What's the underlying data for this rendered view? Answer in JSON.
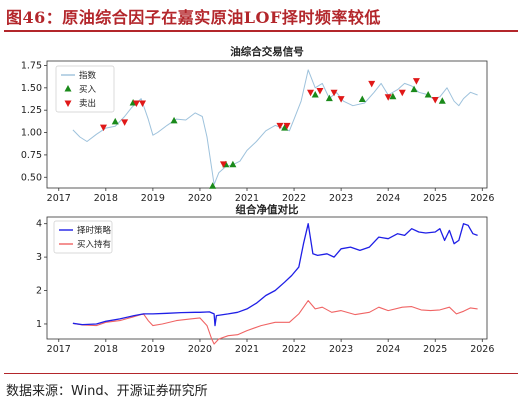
{
  "header": {
    "title": "图46：原油综合因子在嘉实原油LOF择时频率较低"
  },
  "footer": {
    "source": "数据来源：Wind、开源证券研究所"
  },
  "colors": {
    "accent": "#b3262b",
    "signal_line": "#9ec2dc",
    "strategy": "#1f1fe6",
    "buyhold": "#f06464",
    "buy": "#1a8a1a",
    "sell": "#e01818"
  },
  "chart_data": [
    {
      "type": "line",
      "title": "油综合交易信号",
      "x_ticks": [
        2017,
        2018,
        2019,
        2020,
        2021,
        2022,
        2023,
        2024,
        2025,
        2026
      ],
      "y_ticks": [
        0.5,
        0.75,
        1.0,
        1.25,
        1.5,
        1.75
      ],
      "xlim": [
        2016.75,
        2026.1
      ],
      "ylim": [
        0.38,
        1.8
      ],
      "series": [
        {
          "name": "指数",
          "points": [
            [
              2017.3,
              1.03
            ],
            [
              2017.45,
              0.95
            ],
            [
              2017.6,
              0.9
            ],
            [
              2017.8,
              0.98
            ],
            [
              2018.0,
              1.05
            ],
            [
              2018.2,
              1.07
            ],
            [
              2018.4,
              1.18
            ],
            [
              2018.55,
              1.28
            ],
            [
              2018.75,
              1.38
            ],
            [
              2018.9,
              1.15
            ],
            [
              2019.0,
              0.97
            ],
            [
              2019.1,
              1.0
            ],
            [
              2019.3,
              1.08
            ],
            [
              2019.5,
              1.15
            ],
            [
              2019.7,
              1.14
            ],
            [
              2019.9,
              1.22
            ],
            [
              2020.05,
              1.18
            ],
            [
              2020.15,
              0.95
            ],
            [
              2020.25,
              0.6
            ],
            [
              2020.3,
              0.42
            ],
            [
              2020.4,
              0.55
            ],
            [
              2020.55,
              0.62
            ],
            [
              2020.7,
              0.64
            ],
            [
              2020.85,
              0.68
            ],
            [
              2021.0,
              0.8
            ],
            [
              2021.2,
              0.9
            ],
            [
              2021.4,
              1.02
            ],
            [
              2021.6,
              1.08
            ],
            [
              2021.75,
              1.05
            ],
            [
              2021.9,
              1.02
            ],
            [
              2022.0,
              1.15
            ],
            [
              2022.15,
              1.35
            ],
            [
              2022.3,
              1.7
            ],
            [
              2022.45,
              1.5
            ],
            [
              2022.6,
              1.55
            ],
            [
              2022.75,
              1.38
            ],
            [
              2022.9,
              1.45
            ],
            [
              2023.05,
              1.35
            ],
            [
              2023.25,
              1.3
            ],
            [
              2023.5,
              1.33
            ],
            [
              2023.7,
              1.45
            ],
            [
              2023.85,
              1.55
            ],
            [
              2024.0,
              1.42
            ],
            [
              2024.2,
              1.48
            ],
            [
              2024.35,
              1.55
            ],
            [
              2024.5,
              1.52
            ],
            [
              2024.65,
              1.45
            ],
            [
              2024.8,
              1.43
            ],
            [
              2024.95,
              1.38
            ],
            [
              2025.1,
              1.4
            ],
            [
              2025.25,
              1.5
            ],
            [
              2025.4,
              1.35
            ],
            [
              2025.5,
              1.3
            ],
            [
              2025.6,
              1.38
            ],
            [
              2025.75,
              1.45
            ],
            [
              2025.9,
              1.42
            ]
          ]
        }
      ],
      "legend": [
        "指数",
        "买入",
        "卖出"
      ],
      "buy_signals": [
        [
          2018.2,
          1.12
        ],
        [
          2018.58,
          1.33
        ],
        [
          2019.45,
          1.13
        ],
        [
          2020.27,
          0.4
        ],
        [
          2020.55,
          0.64
        ],
        [
          2020.7,
          0.64
        ],
        [
          2021.8,
          1.05
        ],
        [
          2022.45,
          1.42
        ],
        [
          2022.75,
          1.38
        ],
        [
          2023.45,
          1.37
        ],
        [
          2024.1,
          1.4
        ],
        [
          2024.55,
          1.48
        ],
        [
          2024.85,
          1.42
        ],
        [
          2025.15,
          1.35
        ]
      ],
      "sell_signals": [
        [
          2017.95,
          1.06
        ],
        [
          2018.4,
          1.12
        ],
        [
          2018.65,
          1.33
        ],
        [
          2018.78,
          1.33
        ],
        [
          2020.5,
          0.65
        ],
        [
          2021.7,
          1.08
        ],
        [
          2021.85,
          1.08
        ],
        [
          2022.35,
          1.45
        ],
        [
          2022.55,
          1.47
        ],
        [
          2022.85,
          1.45
        ],
        [
          2023.0,
          1.38
        ],
        [
          2023.65,
          1.55
        ],
        [
          2024.0,
          1.4
        ],
        [
          2024.3,
          1.45
        ],
        [
          2024.6,
          1.58
        ],
        [
          2025.0,
          1.37
        ]
      ]
    },
    {
      "type": "line",
      "title": "组合净值对比",
      "x_ticks": [
        2017,
        2018,
        2019,
        2020,
        2021,
        2022,
        2023,
        2024,
        2025,
        2026
      ],
      "y_ticks": [
        1,
        2,
        3,
        4
      ],
      "xlim": [
        2016.75,
        2026.1
      ],
      "ylim": [
        0.55,
        4.2
      ],
      "series": [
        {
          "name": "择时策略",
          "points": [
            [
              2017.3,
              1.02
            ],
            [
              2017.5,
              0.98
            ],
            [
              2017.8,
              1.0
            ],
            [
              2018.0,
              1.08
            ],
            [
              2018.3,
              1.15
            ],
            [
              2018.6,
              1.25
            ],
            [
              2018.8,
              1.3
            ],
            [
              2019.0,
              1.3
            ],
            [
              2019.3,
              1.32
            ],
            [
              2019.6,
              1.34
            ],
            [
              2019.9,
              1.35
            ],
            [
              2020.0,
              1.35
            ],
            [
              2020.2,
              1.36
            ],
            [
              2020.3,
              1.3
            ],
            [
              2020.32,
              0.95
            ],
            [
              2020.35,
              1.25
            ],
            [
              2020.6,
              1.3
            ],
            [
              2020.8,
              1.35
            ],
            [
              2021.0,
              1.45
            ],
            [
              2021.2,
              1.62
            ],
            [
              2021.4,
              1.85
            ],
            [
              2021.6,
              2.0
            ],
            [
              2021.8,
              2.25
            ],
            [
              2021.95,
              2.45
            ],
            [
              2022.1,
              2.7
            ],
            [
              2022.2,
              3.4
            ],
            [
              2022.3,
              4.0
            ],
            [
              2022.4,
              3.1
            ],
            [
              2022.5,
              3.05
            ],
            [
              2022.7,
              3.1
            ],
            [
              2022.85,
              3.0
            ],
            [
              2023.0,
              3.25
            ],
            [
              2023.2,
              3.3
            ],
            [
              2023.4,
              3.2
            ],
            [
              2023.6,
              3.3
            ],
            [
              2023.8,
              3.6
            ],
            [
              2024.0,
              3.55
            ],
            [
              2024.2,
              3.7
            ],
            [
              2024.35,
              3.65
            ],
            [
              2024.5,
              3.85
            ],
            [
              2024.65,
              3.75
            ],
            [
              2024.8,
              3.72
            ],
            [
              2025.0,
              3.75
            ],
            [
              2025.1,
              3.85
            ],
            [
              2025.2,
              3.5
            ],
            [
              2025.3,
              3.8
            ],
            [
              2025.4,
              3.4
            ],
            [
              2025.5,
              3.5
            ],
            [
              2025.6,
              4.0
            ],
            [
              2025.7,
              3.95
            ],
            [
              2025.8,
              3.7
            ],
            [
              2025.9,
              3.65
            ]
          ]
        },
        {
          "name": "买入持有",
          "points": [
            [
              2017.3,
              1.02
            ],
            [
              2017.5,
              0.97
            ],
            [
              2017.8,
              0.95
            ],
            [
              2018.0,
              1.05
            ],
            [
              2018.3,
              1.1
            ],
            [
              2018.55,
              1.2
            ],
            [
              2018.8,
              1.3
            ],
            [
              2018.9,
              1.1
            ],
            [
              2019.0,
              0.95
            ],
            [
              2019.2,
              1.0
            ],
            [
              2019.5,
              1.1
            ],
            [
              2019.8,
              1.15
            ],
            [
              2020.0,
              1.18
            ],
            [
              2020.15,
              0.95
            ],
            [
              2020.25,
              0.55
            ],
            [
              2020.3,
              0.4
            ],
            [
              2020.4,
              0.55
            ],
            [
              2020.6,
              0.65
            ],
            [
              2020.8,
              0.68
            ],
            [
              2021.0,
              0.8
            ],
            [
              2021.3,
              0.95
            ],
            [
              2021.6,
              1.05
            ],
            [
              2021.9,
              1.05
            ],
            [
              2022.1,
              1.3
            ],
            [
              2022.3,
              1.7
            ],
            [
              2022.45,
              1.45
            ],
            [
              2022.6,
              1.5
            ],
            [
              2022.8,
              1.35
            ],
            [
              2023.0,
              1.4
            ],
            [
              2023.3,
              1.28
            ],
            [
              2023.6,
              1.35
            ],
            [
              2023.8,
              1.5
            ],
            [
              2024.0,
              1.4
            ],
            [
              2024.3,
              1.5
            ],
            [
              2024.5,
              1.52
            ],
            [
              2024.7,
              1.42
            ],
            [
              2024.9,
              1.4
            ],
            [
              2025.1,
              1.42
            ],
            [
              2025.3,
              1.5
            ],
            [
              2025.45,
              1.3
            ],
            [
              2025.6,
              1.38
            ],
            [
              2025.75,
              1.48
            ],
            [
              2025.9,
              1.45
            ]
          ]
        }
      ],
      "legend": [
        "择时策略",
        "买入持有"
      ]
    }
  ]
}
